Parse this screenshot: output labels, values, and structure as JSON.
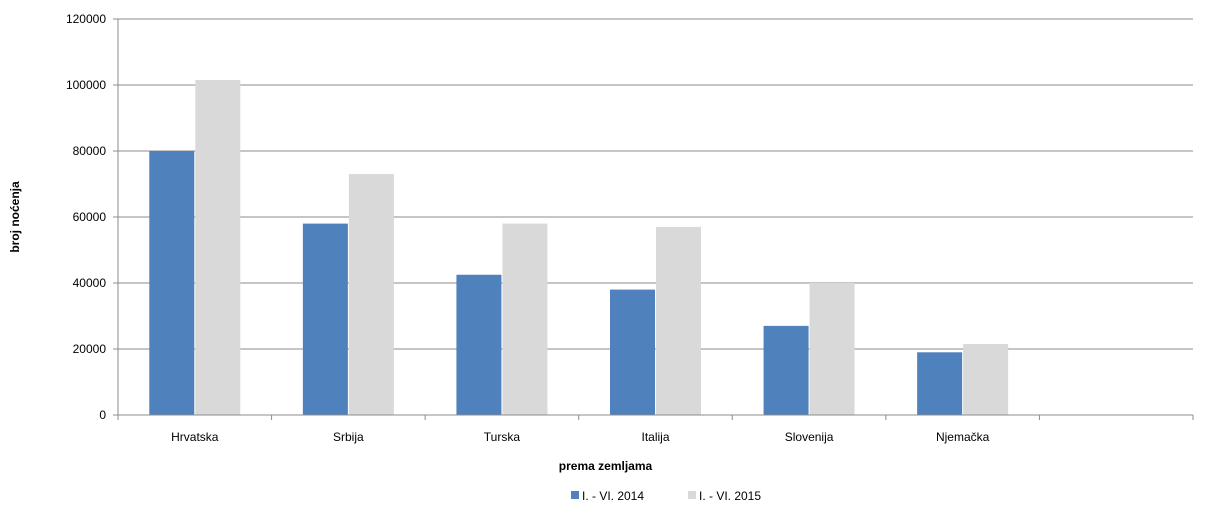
{
  "chart_data": {
    "type": "bar",
    "title": "",
    "xlabel": "prema zemljama",
    "ylabel": "broj noćenja",
    "categories": [
      "Hrvatska",
      "Srbija",
      "Turska",
      "Italija",
      "Slovenija",
      "Njemačka",
      ""
    ],
    "series": [
      {
        "name": "I. - VI. 2014",
        "color": "#4F81BD",
        "values": [
          80000,
          58000,
          42500,
          38000,
          27000,
          19000,
          null
        ]
      },
      {
        "name": "I. - VI. 2015",
        "color": "#D9D9D9",
        "values": [
          101500,
          73000,
          58000,
          57000,
          40000,
          21500,
          null
        ]
      }
    ],
    "ylim": [
      0,
      120000
    ],
    "yticks": [
      0,
      20000,
      40000,
      60000,
      80000,
      100000,
      120000
    ],
    "grid": true,
    "legend_position": "bottom-center"
  }
}
